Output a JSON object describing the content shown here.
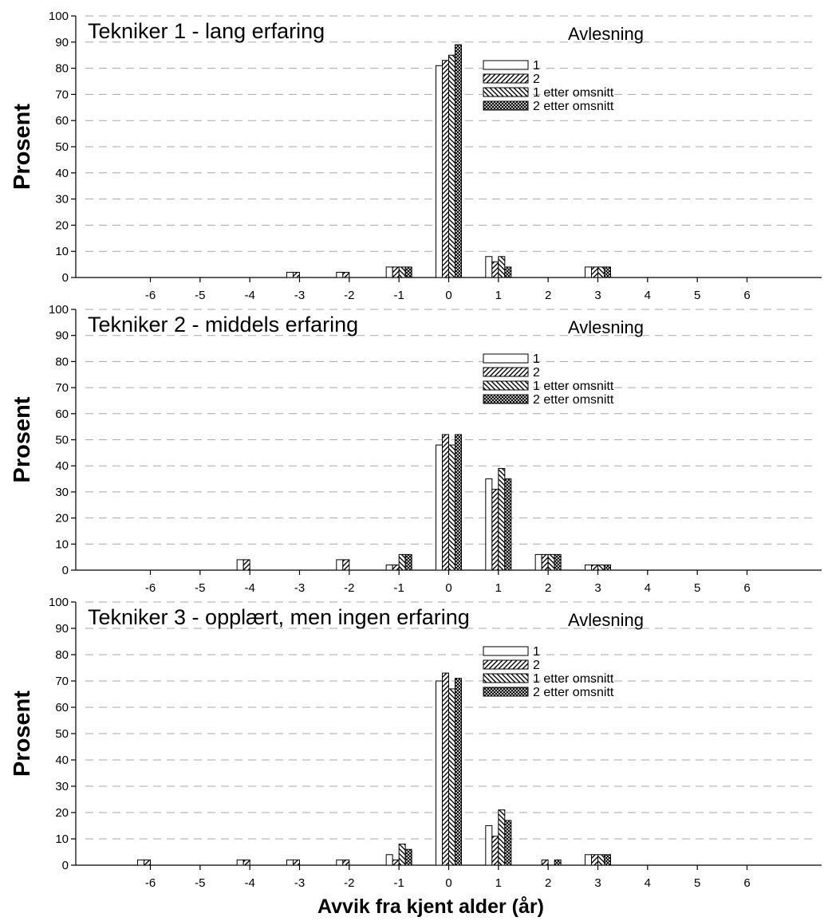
{
  "chart_data": {
    "type": "bar",
    "xlabel": "Avvik fra kjent alder (år)",
    "categories": [
      "-6",
      "-5",
      "-4",
      "-3",
      "-2",
      "-1",
      "0",
      "1",
      "2",
      "3",
      "4",
      "5",
      "6"
    ],
    "x_values": [
      -6,
      -5,
      -4,
      -3,
      -2,
      -1,
      0,
      1,
      2,
      3,
      4,
      5,
      6
    ],
    "xlim": [
      -7.5,
      7.5
    ],
    "ylim": [
      0,
      100
    ],
    "yticks": [
      0,
      10,
      20,
      30,
      40,
      50,
      60,
      70,
      80,
      90,
      100
    ],
    "grid": true,
    "legend_placement": "top-right",
    "legend_title": "Avlesning",
    "series_names": [
      "1",
      "2",
      "1 etter omsnitt",
      "2 etter omsnitt"
    ],
    "series_patterns": [
      "none",
      "diagonal",
      "diagonal-reverse",
      "crosshatch"
    ],
    "panels": [
      {
        "title": "Tekniker 1 - lang erfaring",
        "ylabel": "Prosent",
        "series": [
          {
            "name": "1",
            "values": [
              0,
              0,
              0,
              2,
              2,
              4,
              81,
              8,
              0,
              4,
              0,
              0,
              0
            ]
          },
          {
            "name": "2",
            "values": [
              0,
              0,
              0,
              2,
              2,
              4,
              83,
              6,
              0,
              4,
              0,
              0,
              0
            ]
          },
          {
            "name": "1 etter omsnitt",
            "values": [
              0,
              0,
              0,
              0,
              0,
              4,
              85,
              8,
              0,
              4,
              0,
              0,
              0
            ]
          },
          {
            "name": "2 etter omsnitt",
            "values": [
              0,
              0,
              0,
              0,
              0,
              4,
              89,
              4,
              0,
              4,
              0,
              0,
              0
            ]
          }
        ]
      },
      {
        "title": "Tekniker 2 - middels erfaring",
        "ylabel": "Prosent",
        "series": [
          {
            "name": "1",
            "values": [
              0,
              0,
              4,
              0,
              4,
              2,
              48,
              35,
              6,
              2,
              0,
              0,
              0
            ]
          },
          {
            "name": "2",
            "values": [
              0,
              0,
              4,
              0,
              4,
              2,
              52,
              31,
              6,
              2,
              0,
              0,
              0
            ]
          },
          {
            "name": "1 etter omsnitt",
            "values": [
              0,
              0,
              0,
              0,
              0,
              6,
              48,
              39,
              6,
              2,
              0,
              0,
              0
            ]
          },
          {
            "name": "2 etter omsnitt",
            "values": [
              0,
              0,
              0,
              0,
              0,
              6,
              52,
              35,
              6,
              2,
              0,
              0,
              0
            ]
          }
        ]
      },
      {
        "title": "Tekniker 3 - opplært, men ingen erfaring",
        "ylabel": "Prosent",
        "series": [
          {
            "name": "1",
            "values": [
              2,
              0,
              2,
              2,
              2,
              4,
              70,
              15,
              0,
              4,
              0,
              0,
              0
            ]
          },
          {
            "name": "2",
            "values": [
              2,
              0,
              2,
              2,
              2,
              2,
              73,
              11,
              2,
              4,
              0,
              0,
              0
            ]
          },
          {
            "name": "1 etter omsnitt",
            "values": [
              0,
              0,
              0,
              0,
              0,
              8,
              67,
              21,
              0,
              4,
              0,
              0,
              0
            ]
          },
          {
            "name": "2 etter omsnitt",
            "values": [
              0,
              0,
              0,
              0,
              0,
              6,
              71,
              17,
              2,
              4,
              0,
              0,
              0
            ]
          }
        ]
      }
    ]
  }
}
